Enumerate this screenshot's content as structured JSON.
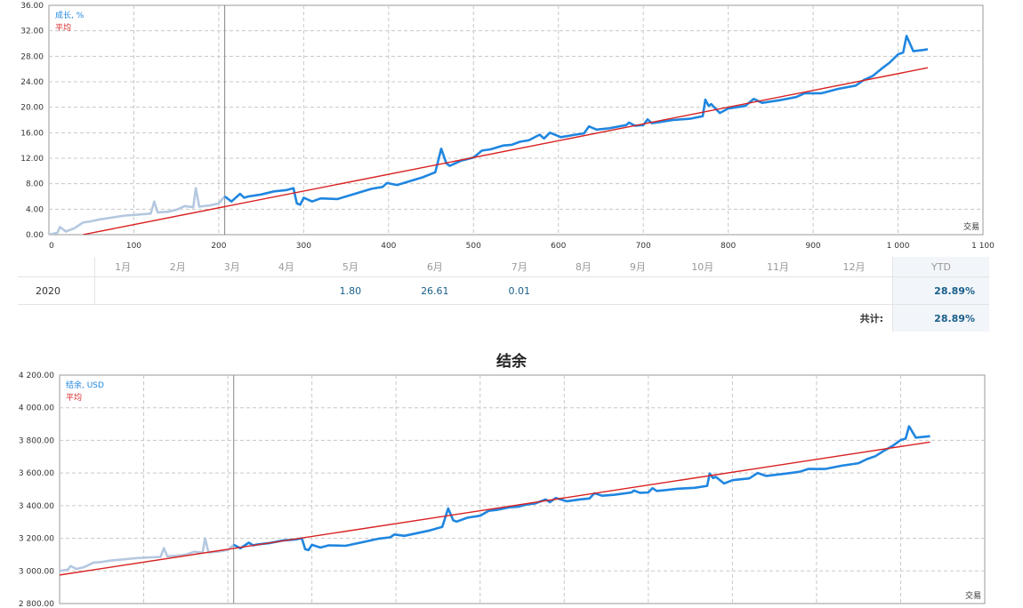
{
  "chart_data": [
    {
      "type": "line",
      "id": "growth",
      "title": "",
      "xlabel": "交易",
      "ylabel": "",
      "xlim": [
        0,
        1100
      ],
      "ylim": [
        0,
        36
      ],
      "xticks": [
        0,
        100,
        200,
        300,
        400,
        500,
        600,
        700,
        800,
        900,
        1000,
        1100
      ],
      "xtick_labels": [
        "0",
        "100",
        "200",
        "300",
        "400",
        "500",
        "600",
        "700",
        "800",
        "900",
        "1 000",
        "1 100"
      ],
      "yticks": [
        0,
        4,
        8,
        12,
        16,
        20,
        24,
        28,
        32,
        36
      ],
      "ytick_labels": [
        "0.00",
        "4.00",
        "8.00",
        "12.00",
        "16.00",
        "20.00",
        "24.00",
        "28.00",
        "32.00",
        "36.00"
      ],
      "divider_x": 207,
      "legend": [
        "成长, %",
        "平均"
      ],
      "grid": true,
      "series": [
        {
          "name": "成长, %",
          "color": "#1f86e0",
          "pre_color": "#b4c8e0",
          "x": [
            0,
            10,
            13,
            20,
            30,
            40,
            50,
            60,
            70,
            80,
            90,
            100,
            110,
            120,
            124,
            128,
            140,
            150,
            160,
            170,
            173,
            177,
            190,
            200,
            207,
            215,
            225,
            230,
            235,
            250,
            265,
            280,
            288,
            292,
            296,
            300,
            310,
            320,
            340,
            360,
            380,
            393,
            398,
            410,
            430,
            440,
            455,
            462,
            468,
            472,
            485,
            500,
            510,
            520,
            535,
            545,
            555,
            565,
            578,
            583,
            590,
            603,
            620,
            630,
            636,
            645,
            660,
            680,
            683,
            690,
            700,
            705,
            710,
            720,
            735,
            755,
            770,
            773,
            777,
            780,
            790,
            800,
            820,
            830,
            840,
            860,
            880,
            890,
            910,
            930,
            950,
            960,
            970,
            980,
            990,
            1000,
            1006,
            1010,
            1018,
            1030,
            1035
          ],
          "values": [
            0,
            0.3,
            1.2,
            0.5,
            1.0,
            1.9,
            2.1,
            2.4,
            2.6,
            2.8,
            3.0,
            3.1,
            3.2,
            3.3,
            5.2,
            3.5,
            3.6,
            3.9,
            4.5,
            4.3,
            7.3,
            4.4,
            4.6,
            4.9,
            6.0,
            5.2,
            6.4,
            5.8,
            6.0,
            6.3,
            6.8,
            7.0,
            7.3,
            4.9,
            4.7,
            5.8,
            5.2,
            5.7,
            5.6,
            6.4,
            7.2,
            7.5,
            8.1,
            7.8,
            8.6,
            9.0,
            9.8,
            13.5,
            11.2,
            10.8,
            11.6,
            12.1,
            13.2,
            13.4,
            14.0,
            14.1,
            14.6,
            14.8,
            15.7,
            15.1,
            16.0,
            15.3,
            15.7,
            15.9,
            17.0,
            16.5,
            16.7,
            17.2,
            17.6,
            17.1,
            17.2,
            18.1,
            17.5,
            17.7,
            18.0,
            18.2,
            18.6,
            21.2,
            20.2,
            20.5,
            19.1,
            19.8,
            20.2,
            21.3,
            20.7,
            21.1,
            21.6,
            22.2,
            22.2,
            22.9,
            23.4,
            24.3,
            24.9,
            26.0,
            27.0,
            28.3,
            28.6,
            31.2,
            28.8,
            29.0,
            29.1
          ]
        },
        {
          "name": "平均",
          "color": "#d92020",
          "x": [
            40,
            1035
          ],
          "values": [
            0,
            26.2
          ]
        }
      ],
      "monthly_table": {
        "year": "2020",
        "months": [
          "1月",
          "2月",
          "3月",
          "4月",
          "5月",
          "6月",
          "7月",
          "8月",
          "9月",
          "10月",
          "11月",
          "12月"
        ],
        "values": [
          "",
          "",
          "",
          "",
          "1.80",
          "26.61",
          "0.01",
          "",
          "",
          "",
          "",
          ""
        ],
        "ytd_label": "YTD",
        "ytd_value": "28.89%",
        "total_label": "共计:",
        "total_value": "28.89%"
      }
    },
    {
      "type": "line",
      "id": "balance",
      "title": "结余",
      "xlabel": "交易",
      "ylabel": "",
      "xlim": [
        0,
        1100
      ],
      "ylim": [
        2800,
        4200
      ],
      "yticks": [
        2800,
        3000,
        3200,
        3400,
        3600,
        3800,
        4000,
        4200
      ],
      "ytick_labels": [
        "2 800.00",
        "3 000.00",
        "3 200.00",
        "3 400.00",
        "3 600.00",
        "3 800.00",
        "4 000.00",
        "4 200.00"
      ],
      "divider_x": 207,
      "legend": [
        "结余, USD",
        "平均"
      ],
      "grid": true,
      "series": [
        {
          "name": "结余, USD",
          "color": "#1f86e0",
          "pre_color": "#b4c8e0",
          "x": [
            0,
            10,
            13,
            20,
            30,
            40,
            50,
            60,
            70,
            80,
            90,
            100,
            110,
            120,
            124,
            128,
            140,
            150,
            160,
            170,
            173,
            177,
            190,
            200,
            207,
            215,
            225,
            230,
            235,
            250,
            265,
            280,
            288,
            292,
            296,
            300,
            310,
            320,
            340,
            360,
            380,
            393,
            398,
            410,
            430,
            440,
            455,
            462,
            468,
            472,
            485,
            500,
            510,
            520,
            535,
            545,
            555,
            565,
            578,
            583,
            590,
            603,
            620,
            630,
            636,
            645,
            660,
            680,
            683,
            690,
            700,
            705,
            710,
            720,
            735,
            755,
            770,
            773,
            777,
            780,
            790,
            800,
            820,
            830,
            840,
            860,
            880,
            890,
            910,
            930,
            950,
            960,
            970,
            980,
            990,
            1000,
            1006,
            1010,
            1018,
            1030,
            1035
          ],
          "values": [
            3000,
            3008,
            3030,
            3012,
            3025,
            3050,
            3055,
            3063,
            3068,
            3073,
            3078,
            3081,
            3083,
            3086,
            3140,
            3090,
            3093,
            3100,
            3117,
            3112,
            3200,
            3114,
            3120,
            3129,
            3160,
            3139,
            3173,
            3157,
            3162,
            3171,
            3186,
            3192,
            3200,
            3133,
            3128,
            3160,
            3143,
            3157,
            3154,
            3176,
            3198,
            3206,
            3223,
            3215,
            3237,
            3248,
            3270,
            3383,
            3310,
            3302,
            3326,
            3338,
            3368,
            3374,
            3390,
            3393,
            3407,
            3413,
            3438,
            3421,
            3447,
            3427,
            3439,
            3444,
            3476,
            3461,
            3467,
            3481,
            3493,
            3479,
            3481,
            3507,
            3490,
            3495,
            3504,
            3509,
            3521,
            3597,
            3569,
            3577,
            3536,
            3556,
            3567,
            3600,
            3582,
            3594,
            3608,
            3625,
            3625,
            3645,
            3660,
            3685,
            3703,
            3736,
            3765,
            3802,
            3811,
            3886,
            3817,
            3823,
            3826
          ]
        },
        {
          "name": "平均",
          "color": "#d92020",
          "x": [
            0,
            1035
          ],
          "values": [
            2975,
            3790
          ]
        }
      ]
    }
  ]
}
